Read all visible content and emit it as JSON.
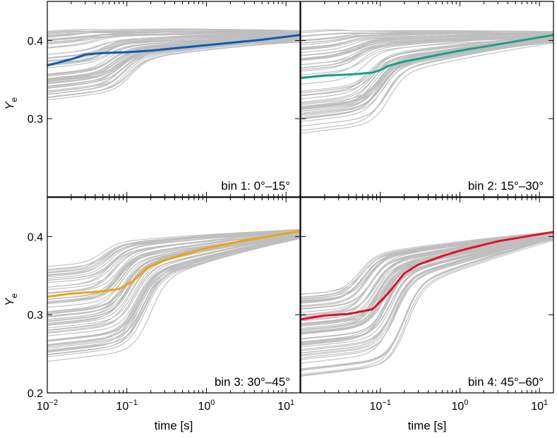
{
  "chart_data": {
    "type": "line",
    "layout": "2x2 grid, shared axes",
    "xscale": "log",
    "xlim": [
      0.01,
      15
    ],
    "ylim": [
      0.2,
      0.45
    ],
    "xlabel": "time [s]",
    "ylabel_main": "Y",
    "ylabel_sub": "e",
    "xticks": [
      0.01,
      0.1,
      1,
      10
    ],
    "xtick_base": "10",
    "xtick_exponents": [
      "−2",
      "−1",
      "0",
      "1"
    ],
    "yticks": [
      0.2,
      0.3,
      0.4
    ],
    "ytick_labels": [
      "0.2",
      "0.3",
      "0.4"
    ],
    "grid": false,
    "background_color": "#bebebe",
    "panels": [
      {
        "label": "bin 1:   0°–15°",
        "highlight_color": "#0a5cb0",
        "highlight": [
          [
            0.01,
            0.368
          ],
          [
            0.02,
            0.376
          ],
          [
            0.03,
            0.382
          ],
          [
            0.05,
            0.384
          ],
          [
            0.1,
            0.385
          ],
          [
            0.2,
            0.387
          ],
          [
            0.5,
            0.391
          ],
          [
            1,
            0.394
          ],
          [
            2,
            0.397
          ],
          [
            5,
            0.401
          ],
          [
            15,
            0.407
          ]
        ],
        "envelope": {
          "upper_start": 0.412,
          "lower_start": 0.323,
          "lower_step_time": 0.12,
          "end_range": [
            0.397,
            0.414
          ]
        }
      },
      {
        "label": "bin 2: 15°–30°",
        "highlight_color": "#17a085",
        "highlight": [
          [
            0.01,
            0.352
          ],
          [
            0.02,
            0.355
          ],
          [
            0.05,
            0.357
          ],
          [
            0.08,
            0.359
          ],
          [
            0.1,
            0.362
          ],
          [
            0.13,
            0.368
          ],
          [
            0.2,
            0.373
          ],
          [
            0.5,
            0.381
          ],
          [
            1,
            0.387
          ],
          [
            3,
            0.395
          ],
          [
            15,
            0.407
          ]
        ],
        "envelope": {
          "upper_start": 0.412,
          "lower_start": 0.278,
          "lower_step_time": 0.14,
          "end_range": [
            0.395,
            0.413
          ]
        }
      },
      {
        "label": "bin 3: 30°–45°",
        "highlight_color": "#f0a30a",
        "highlight": [
          [
            0.01,
            0.323
          ],
          [
            0.02,
            0.327
          ],
          [
            0.05,
            0.33
          ],
          [
            0.08,
            0.333
          ],
          [
            0.12,
            0.343
          ],
          [
            0.18,
            0.36
          ],
          [
            0.3,
            0.37
          ],
          [
            0.6,
            0.379
          ],
          [
            1,
            0.385
          ],
          [
            3,
            0.395
          ],
          [
            15,
            0.407
          ]
        ],
        "envelope": {
          "upper_start": 0.362,
          "lower_start": 0.238,
          "lower_step_time": 0.2,
          "end_range": [
            0.396,
            0.41
          ]
        }
      },
      {
        "label": "bin 4: 45°–60°",
        "highlight_color": "#e0102a",
        "highlight": [
          [
            0.01,
            0.294
          ],
          [
            0.02,
            0.299
          ],
          [
            0.04,
            0.301
          ],
          [
            0.08,
            0.307
          ],
          [
            0.12,
            0.325
          ],
          [
            0.2,
            0.353
          ],
          [
            0.3,
            0.364
          ],
          [
            0.6,
            0.375
          ],
          [
            1,
            0.382
          ],
          [
            3,
            0.394
          ],
          [
            15,
            0.406
          ]
        ],
        "envelope": {
          "upper_start": 0.329,
          "lower_start": 0.22,
          "lower_step_time": 0.22,
          "end_range": [
            0.393,
            0.408
          ]
        }
      }
    ]
  }
}
